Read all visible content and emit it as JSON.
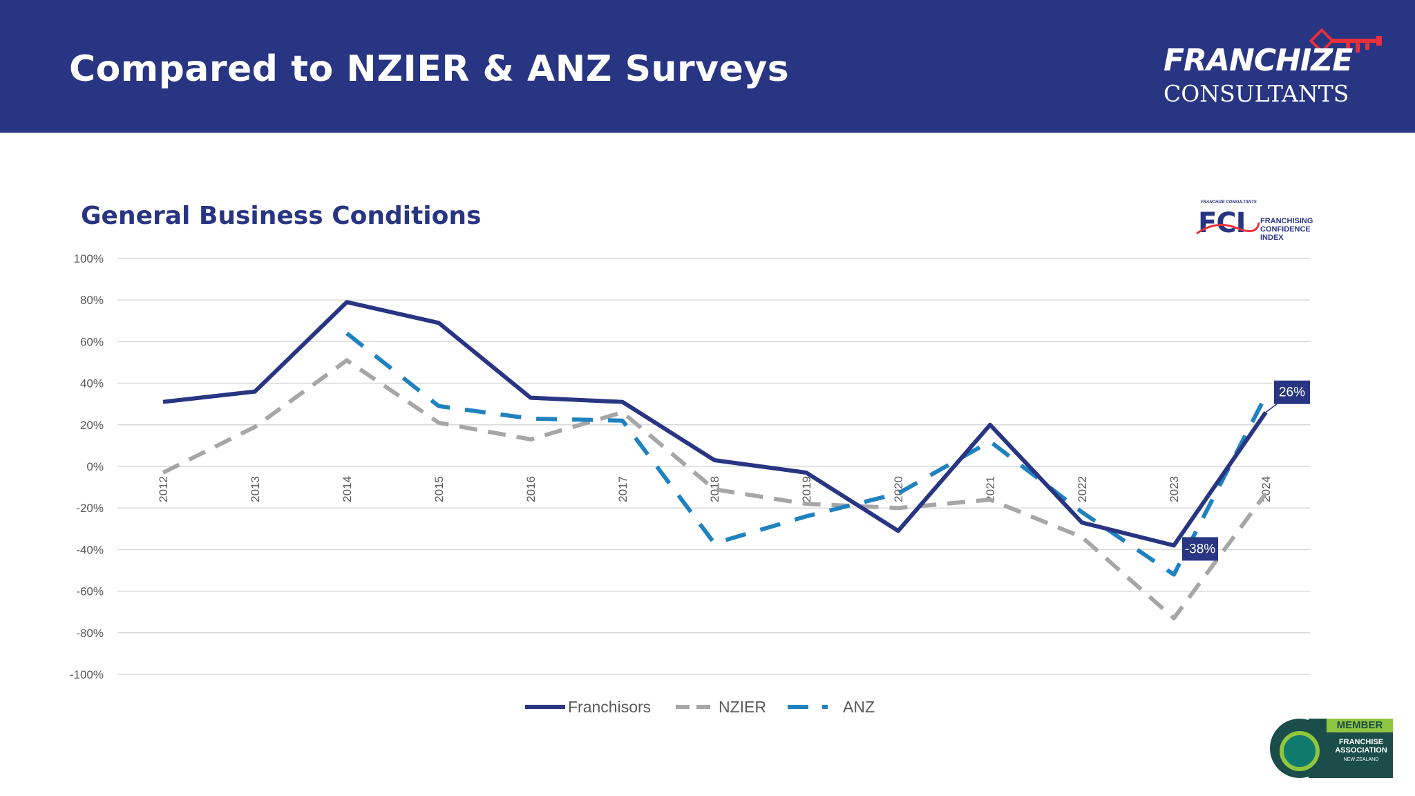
{
  "slide": {
    "title": "Compared to NZIER & ANZ Surveys"
  },
  "logo": {
    "line1": "FRANCHIZE",
    "line2": "CONSULTANTS"
  },
  "fci_badge": {
    "tiny": "FRANCHIZE CONSULTANTS",
    "letters": "FCI",
    "line1": "FRANCHISING",
    "line2": "CONFIDENCE",
    "line3": "INDEX"
  },
  "member_badge": {
    "top": "MEMBER",
    "line1": "FRANCHISE",
    "line2": "ASSOCIATION",
    "line3": "NEW ZEALAND"
  },
  "colors": {
    "header_bg": "#283583",
    "franchisors": "#283583",
    "nzier": "#a6a6a6",
    "anz": "#1f82c0",
    "grid": "#d9d9d9"
  },
  "chart_data": {
    "type": "line",
    "title": "General Business Conditions",
    "x": [
      "2012",
      "2013",
      "2014",
      "2015",
      "2016",
      "2017",
      "2018",
      "2019",
      "2020",
      "2021",
      "2022",
      "2023",
      "2024"
    ],
    "ylim": [
      -100,
      100
    ],
    "yticks": [
      "100%",
      "80%",
      "60%",
      "40%",
      "20%",
      "0%",
      "-20%",
      "-40%",
      "-60%",
      "-80%",
      "-100%"
    ],
    "grid": true,
    "legend_position": "bottom",
    "series": [
      {
        "name": "Franchisors",
        "style": "solid",
        "values": [
          31,
          36,
          79,
          69,
          33,
          31,
          3,
          -3,
          -31,
          20,
          -27,
          -38,
          26
        ]
      },
      {
        "name": "NZIER",
        "style": "dashed",
        "values": [
          -3,
          19,
          51,
          21,
          13,
          26,
          -11,
          -18,
          -20,
          -16,
          -34,
          -73,
          -13
        ]
      },
      {
        "name": "ANZ",
        "style": "dashed",
        "values": [
          null,
          null,
          64,
          29,
          23,
          22,
          -37,
          -24,
          -13,
          12,
          -22,
          -52,
          34
        ]
      }
    ],
    "annotations": [
      {
        "series": "Franchisors",
        "x": "2024",
        "text": "26%"
      },
      {
        "series": "Franchisors",
        "x": "2023",
        "text": "-38%"
      }
    ]
  }
}
